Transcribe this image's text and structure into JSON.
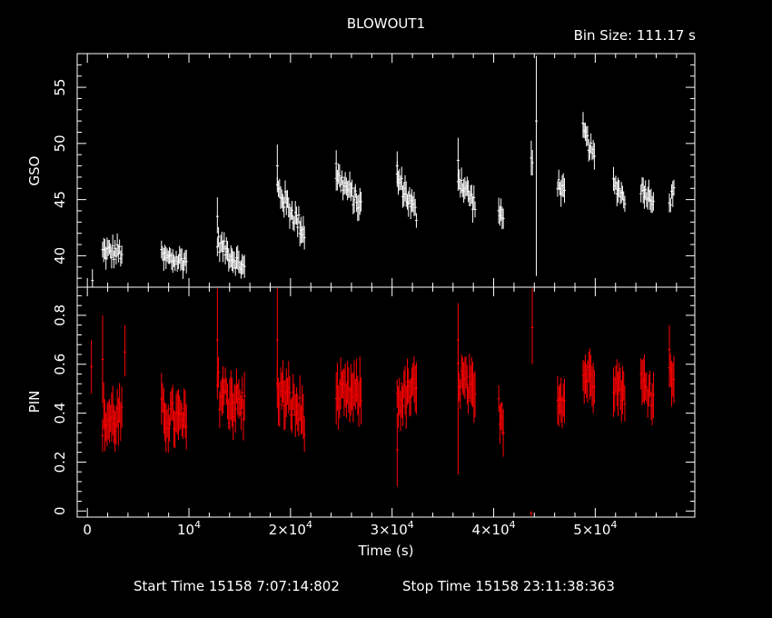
{
  "chart_data": {
    "type": "scatter",
    "title": "BLOWOUT1",
    "subtitle": "Bin Size:  111.17  s",
    "xlabel": "Time (s)",
    "xlim": [
      -1000,
      59800
    ],
    "x_ticks": [
      {
        "v": 0,
        "label": "0"
      },
      {
        "v": 10000,
        "label": "10",
        "sup": "4"
      },
      {
        "v": 20000,
        "label": "2×10",
        "sup": "4"
      },
      {
        "v": 30000,
        "label": "3×10",
        "sup": "4"
      },
      {
        "v": 40000,
        "label": "4×10",
        "sup": "4"
      },
      {
        "v": 50000,
        "label": "5×10",
        "sup": "4"
      }
    ],
    "footer": {
      "start": "Start Time 15158  7:07:14:802",
      "stop": "Stop Time 15158 23:11:38:363"
    },
    "panels": [
      {
        "name": "gso",
        "ylabel": "GSO",
        "color": "#ffffff",
        "ylim": [
          37.2,
          58
        ],
        "y_ticks": [
          40,
          45,
          50,
          55
        ],
        "segments": [
          {
            "x0": 1500,
            "x1": 3500,
            "y0": 40.3,
            "y1": 40.3,
            "noise": 0.8,
            "err": 0.9
          },
          {
            "x0": 7300,
            "x1": 9800,
            "y0": 39.8,
            "y1": 39.5,
            "noise": 0.8,
            "err": 0.9
          },
          {
            "x0": 12800,
            "x1": 15500,
            "y0": 41.2,
            "y1": 38.8,
            "noise": 0.7,
            "err": 0.9
          },
          {
            "x0": 18700,
            "x1": 21400,
            "y0": 46.0,
            "y1": 42.0,
            "noise": 0.9,
            "err": 1.0
          },
          {
            "x0": 24500,
            "x1": 27000,
            "y0": 47.2,
            "y1": 44.3,
            "noise": 0.8,
            "err": 1.0
          },
          {
            "x0": 30500,
            "x1": 32500,
            "y0": 47.0,
            "y1": 43.5,
            "noise": 0.8,
            "err": 1.0
          },
          {
            "x0": 36500,
            "x1": 38200,
            "y0": 47.0,
            "y1": 44.5,
            "noise": 0.8,
            "err": 1.0
          },
          {
            "x0": 40500,
            "x1": 41000,
            "y0": 43.8,
            "y1": 43.2,
            "noise": 0.6,
            "err": 1.0
          },
          {
            "x0": 43700,
            "x1": 43900,
            "y0": 48.5,
            "y1": 48.5,
            "noise": 0.5,
            "err": 1.5
          },
          {
            "x0": 46300,
            "x1": 47000,
            "y0": 46.5,
            "y1": 45.5,
            "noise": 0.6,
            "err": 1.0
          },
          {
            "x0": 48800,
            "x1": 50000,
            "y0": 51.2,
            "y1": 48.5,
            "noise": 0.6,
            "err": 1.0
          },
          {
            "x0": 51800,
            "x1": 53000,
            "y0": 46.5,
            "y1": 45.0,
            "noise": 0.6,
            "err": 1.0
          },
          {
            "x0": 54500,
            "x1": 55800,
            "y0": 46.0,
            "y1": 45.0,
            "noise": 0.6,
            "err": 1.0
          },
          {
            "x0": 57300,
            "x1": 57800,
            "y0": 44.8,
            "y1": 45.8,
            "noise": 0.6,
            "err": 1.0
          }
        ],
        "spikes": [
          {
            "x": 500,
            "y": 37.8,
            "lo": 37.2,
            "hi": 38.8
          },
          {
            "x": 12800,
            "y": 43.5,
            "lo": 42.0,
            "hi": 45.2
          },
          {
            "x": 18700,
            "y": 48.0,
            "lo": 46.2,
            "hi": 49.9
          },
          {
            "x": 24500,
            "y": 48.2,
            "lo": 47.0,
            "hi": 49.4
          },
          {
            "x": 30500,
            "y": 48.0,
            "lo": 46.5,
            "hi": 49.3
          },
          {
            "x": 36500,
            "y": 48.5,
            "lo": 47.0,
            "hi": 50.5
          },
          {
            "x": 44200,
            "y": 52.0,
            "lo": 38.2,
            "hi": 57.8
          },
          {
            "x": 48800,
            "y": 51.8,
            "lo": 50.5,
            "hi": 52.8
          }
        ]
      },
      {
        "name": "pin",
        "ylabel": "PIN",
        "color": "#ff0000",
        "ylim": [
          -0.025,
          0.915
        ],
        "y_ticks": [
          0,
          0.2,
          0.4,
          0.6,
          0.8
        ],
        "segments": [
          {
            "x0": 1500,
            "x1": 3500,
            "y0": 0.37,
            "y1": 0.38,
            "noise": 0.07,
            "err": 0.09
          },
          {
            "x0": 7300,
            "x1": 9800,
            "y0": 0.4,
            "y1": 0.35,
            "noise": 0.07,
            "err": 0.09
          },
          {
            "x0": 12800,
            "x1": 15500,
            "y0": 0.5,
            "y1": 0.42,
            "noise": 0.08,
            "err": 0.09
          },
          {
            "x0": 18700,
            "x1": 21400,
            "y0": 0.5,
            "y1": 0.38,
            "noise": 0.07,
            "err": 0.09
          },
          {
            "x0": 24500,
            "x1": 27000,
            "y0": 0.46,
            "y1": 0.48,
            "noise": 0.06,
            "err": 0.09
          },
          {
            "x0": 30500,
            "x1": 32500,
            "y0": 0.45,
            "y1": 0.5,
            "noise": 0.06,
            "err": 0.09
          },
          {
            "x0": 36500,
            "x1": 38200,
            "y0": 0.55,
            "y1": 0.45,
            "noise": 0.07,
            "err": 0.09
          },
          {
            "x0": 40500,
            "x1": 41000,
            "y0": 0.42,
            "y1": 0.35,
            "noise": 0.05,
            "err": 0.09
          },
          {
            "x0": 46300,
            "x1": 47000,
            "y0": 0.48,
            "y1": 0.45,
            "noise": 0.06,
            "err": 0.09
          },
          {
            "x0": 48800,
            "x1": 50000,
            "y0": 0.55,
            "y1": 0.55,
            "noise": 0.05,
            "err": 0.09
          },
          {
            "x0": 51800,
            "x1": 53000,
            "y0": 0.53,
            "y1": 0.48,
            "noise": 0.05,
            "err": 0.09
          },
          {
            "x0": 54500,
            "x1": 55800,
            "y0": 0.52,
            "y1": 0.48,
            "noise": 0.06,
            "err": 0.09
          },
          {
            "x0": 57300,
            "x1": 57800,
            "y0": 0.55,
            "y1": 0.58,
            "noise": 0.05,
            "err": 0.09
          }
        ],
        "spikes": [
          {
            "x": 400,
            "y": 0.59,
            "lo": 0.48,
            "hi": 0.7
          },
          {
            "x": 1500,
            "y": 0.62,
            "lo": 0.44,
            "hi": 0.8
          },
          {
            "x": 3700,
            "y": 0.65,
            "lo": 0.55,
            "hi": 0.76
          },
          {
            "x": 12800,
            "y": 0.7,
            "lo": 0.5,
            "hi": 0.91
          },
          {
            "x": 18700,
            "y": 0.7,
            "lo": 0.5,
            "hi": 0.91
          },
          {
            "x": 30500,
            "y": 0.25,
            "lo": 0.1,
            "hi": 0.4
          },
          {
            "x": 36500,
            "y": 0.7,
            "lo": 0.15,
            "hi": 0.85
          },
          {
            "x": 43800,
            "y": 0.75,
            "lo": 0.6,
            "hi": 0.91
          },
          {
            "x": 43700,
            "y": -0.01,
            "lo": -0.02,
            "hi": 0.0
          },
          {
            "x": 57300,
            "y": 0.66,
            "lo": 0.55,
            "hi": 0.76
          }
        ]
      }
    ]
  }
}
